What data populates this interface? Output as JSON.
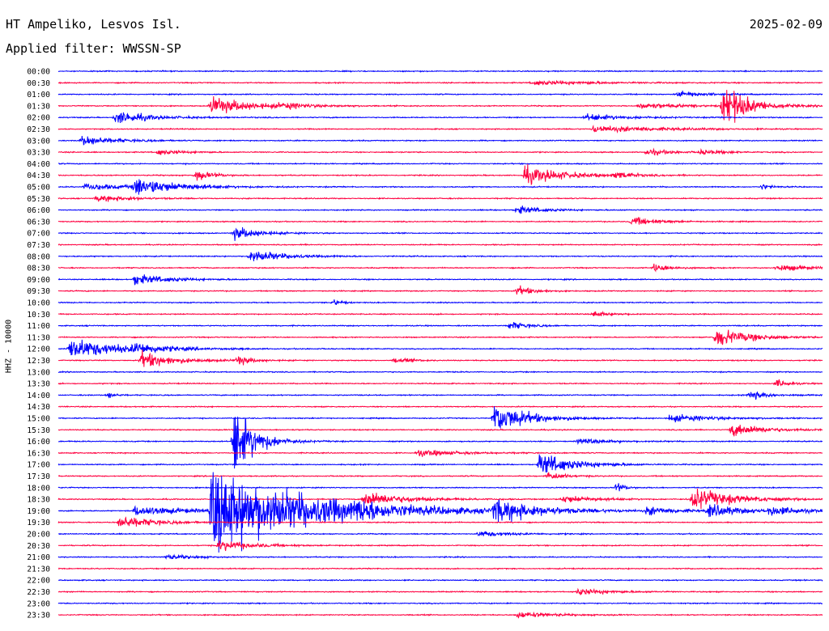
{
  "header": {
    "station": "HT Ampeliko, Lesvos Isl.",
    "date": "2025-02-09",
    "filter": "Applied filter: WWSSN-SP"
  },
  "chart_data": {
    "type": "line",
    "ylabel": "HHZ - 10000",
    "row_labels": [
      "00:00",
      "00:30",
      "01:00",
      "01:30",
      "02:00",
      "02:30",
      "03:00",
      "03:30",
      "04:00",
      "04:30",
      "05:00",
      "05:30",
      "06:00",
      "06:30",
      "07:00",
      "07:30",
      "08:00",
      "08:30",
      "09:00",
      "09:30",
      "10:00",
      "10:30",
      "11:00",
      "11:30",
      "12:00",
      "12:30",
      "13:00",
      "13:30",
      "14:00",
      "14:30",
      "15:00",
      "15:30",
      "16:00",
      "16:30",
      "17:00",
      "17:30",
      "18:00",
      "18:30",
      "19:00",
      "19:30",
      "20:00",
      "20:30",
      "21:00",
      "21:30",
      "22:00",
      "22:30",
      "23:00",
      "23:30"
    ],
    "x_range_minutes": [
      0,
      30
    ],
    "colors": {
      "even": "#0000ff",
      "odd": "#ff0040"
    },
    "events": [
      {
        "row": 1,
        "x": 0.62,
        "amp": 4,
        "dur": 0.08
      },
      {
        "row": 2,
        "x": 0.81,
        "amp": 6,
        "dur": 0.03
      },
      {
        "row": 3,
        "x": 0.2,
        "amp": 16,
        "dur": 0.05
      },
      {
        "row": 3,
        "x": 0.29,
        "amp": 5,
        "dur": 0.03
      },
      {
        "row": 3,
        "x": 0.76,
        "amp": 6,
        "dur": 0.05
      },
      {
        "row": 3,
        "x": 0.87,
        "amp": 40,
        "dur": 0.03
      },
      {
        "row": 4,
        "x": 0.075,
        "amp": 12,
        "dur": 0.04
      },
      {
        "row": 4,
        "x": 0.69,
        "amp": 6,
        "dur": 0.05
      },
      {
        "row": 5,
        "x": 0.7,
        "amp": 6,
        "dur": 0.08
      },
      {
        "row": 6,
        "x": 0.03,
        "amp": 9,
        "dur": 0.04
      },
      {
        "row": 7,
        "x": 0.13,
        "amp": 5,
        "dur": 0.03
      },
      {
        "row": 7,
        "x": 0.77,
        "amp": 6,
        "dur": 0.03
      },
      {
        "row": 7,
        "x": 0.84,
        "amp": 4,
        "dur": 0.03
      },
      {
        "row": 9,
        "x": 0.18,
        "amp": 10,
        "dur": 0.02
      },
      {
        "row": 9,
        "x": 0.61,
        "amp": 16,
        "dur": 0.05
      },
      {
        "row": 9,
        "x": 0.73,
        "amp": 6,
        "dur": 0.02
      },
      {
        "row": 10,
        "x": 0.035,
        "amp": 6,
        "dur": 0.06
      },
      {
        "row": 10,
        "x": 0.1,
        "amp": 16,
        "dur": 0.05
      },
      {
        "row": 10,
        "x": 0.92,
        "amp": 6,
        "dur": 0.01
      },
      {
        "row": 11,
        "x": 0.05,
        "amp": 6,
        "dur": 0.04
      },
      {
        "row": 12,
        "x": 0.6,
        "amp": 8,
        "dur": 0.03
      },
      {
        "row": 13,
        "x": 0.75,
        "amp": 8,
        "dur": 0.03
      },
      {
        "row": 14,
        "x": 0.23,
        "amp": 12,
        "dur": 0.03
      },
      {
        "row": 16,
        "x": 0.25,
        "amp": 12,
        "dur": 0.04
      },
      {
        "row": 17,
        "x": 0.78,
        "amp": 8,
        "dur": 0.02
      },
      {
        "row": 17,
        "x": 0.94,
        "amp": 6,
        "dur": 0.04
      },
      {
        "row": 18,
        "x": 0.1,
        "amp": 10,
        "dur": 0.04
      },
      {
        "row": 19,
        "x": 0.6,
        "amp": 9,
        "dur": 0.02
      },
      {
        "row": 20,
        "x": 0.36,
        "amp": 6,
        "dur": 0.01
      },
      {
        "row": 21,
        "x": 0.7,
        "amp": 6,
        "dur": 0.02
      },
      {
        "row": 22,
        "x": 0.59,
        "amp": 8,
        "dur": 0.02
      },
      {
        "row": 23,
        "x": 0.86,
        "amp": 18,
        "dur": 0.04
      },
      {
        "row": 24,
        "x": 0.015,
        "amp": 20,
        "dur": 0.06
      },
      {
        "row": 24,
        "x": 0.1,
        "amp": 8,
        "dur": 0.03
      },
      {
        "row": 25,
        "x": 0.108,
        "amp": 15,
        "dur": 0.04
      },
      {
        "row": 25,
        "x": 0.235,
        "amp": 10,
        "dur": 0.015
      },
      {
        "row": 25,
        "x": 0.44,
        "amp": 5,
        "dur": 0.02
      },
      {
        "row": 27,
        "x": 0.94,
        "amp": 8,
        "dur": 0.015
      },
      {
        "row": 28,
        "x": 0.065,
        "amp": 6,
        "dur": 0.01
      },
      {
        "row": 28,
        "x": 0.905,
        "amp": 9,
        "dur": 0.02
      },
      {
        "row": 30,
        "x": 0.57,
        "amp": 30,
        "dur": 0.04
      },
      {
        "row": 30,
        "x": 0.8,
        "amp": 7,
        "dur": 0.05
      },
      {
        "row": 31,
        "x": 0.88,
        "amp": 12,
        "dur": 0.04
      },
      {
        "row": 32,
        "x": 0.68,
        "amp": 5,
        "dur": 0.04
      },
      {
        "row": 32,
        "x": 0.23,
        "amp": 70,
        "dur": 0.025
      },
      {
        "row": 33,
        "x": 0.47,
        "amp": 6,
        "dur": 0.05
      },
      {
        "row": 34,
        "x": 0.63,
        "amp": 22,
        "dur": 0.04
      },
      {
        "row": 35,
        "x": 0.64,
        "amp": 8,
        "dur": 0.02
      },
      {
        "row": 36,
        "x": 0.73,
        "amp": 10,
        "dur": 0.01
      },
      {
        "row": 37,
        "x": 0.4,
        "amp": 14,
        "dur": 0.05
      },
      {
        "row": 37,
        "x": 0.66,
        "amp": 7,
        "dur": 0.04
      },
      {
        "row": 37,
        "x": 0.83,
        "amp": 20,
        "dur": 0.05
      },
      {
        "row": 38,
        "x": 0.2,
        "amp": 80,
        "dur": 0.12
      },
      {
        "row": 38,
        "x": 0.1,
        "amp": 10,
        "dur": 0.06
      },
      {
        "row": 38,
        "x": 0.39,
        "amp": 10,
        "dur": 0.02
      },
      {
        "row": 38,
        "x": 0.57,
        "amp": 20,
        "dur": 0.05
      },
      {
        "row": 38,
        "x": 0.77,
        "amp": 8,
        "dur": 0.03
      },
      {
        "row": 38,
        "x": 0.85,
        "amp": 12,
        "dur": 0.04
      },
      {
        "row": 38,
        "x": 0.93,
        "amp": 8,
        "dur": 0.04
      },
      {
        "row": 39,
        "x": 0.08,
        "amp": 12,
        "dur": 0.04
      },
      {
        "row": 40,
        "x": 0.55,
        "amp": 5,
        "dur": 0.04
      },
      {
        "row": 41,
        "x": 0.21,
        "amp": 10,
        "dur": 0.04
      },
      {
        "row": 42,
        "x": 0.14,
        "amp": 5,
        "dur": 0.03
      },
      {
        "row": 45,
        "x": 0.68,
        "amp": 6,
        "dur": 0.04
      },
      {
        "row": 47,
        "x": 0.6,
        "amp": 6,
        "dur": 0.04
      }
    ]
  }
}
